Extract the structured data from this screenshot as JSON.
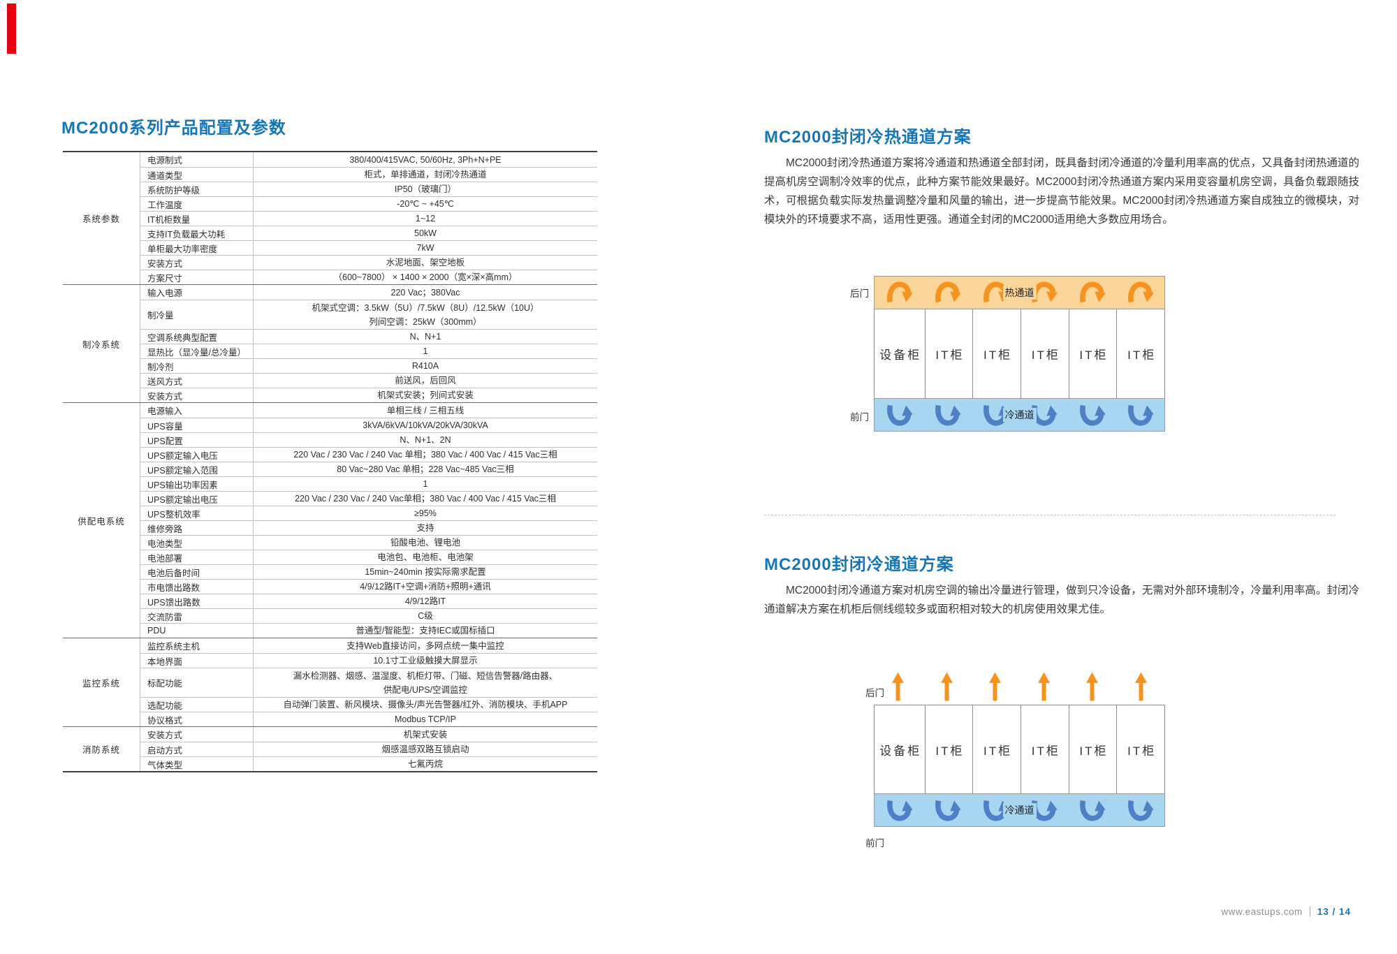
{
  "colors": {
    "accent_blue": "#1677b8",
    "arrow_orange": "#f6921e",
    "hot_band": "#fbd69a",
    "cold_band": "#a8d6f0",
    "arrow_blue": "#4d80c4",
    "red_tab": "#e60012"
  },
  "left": {
    "title": "MC2000系列产品配置及参数",
    "table": {
      "groups": [
        {
          "name": "系统参数",
          "rows": [
            {
              "param": "电源制式",
              "value": "380/400/415VAC, 50/60Hz, 3Ph+N+PE"
            },
            {
              "param": "通道类型",
              "value": "柜式，单排通道，封闭冷热通道"
            },
            {
              "param": "系统防护等级",
              "value": "IP50（玻璃门）"
            },
            {
              "param": "工作温度",
              "value": "-20℃ ~ +45℃"
            },
            {
              "param": "IT机柜数量",
              "value": "1~12"
            },
            {
              "param": "支持IT负载最大功耗",
              "value": "50kW"
            },
            {
              "param": "单柜最大功率密度",
              "value": "7kW"
            },
            {
              "param": "安装方式",
              "value": "水泥地面、架空地板"
            },
            {
              "param": "方案尺寸",
              "value": "（600~7800） × 1400 × 2000（宽×深×高mm）"
            }
          ]
        },
        {
          "name": "制冷系统",
          "rows": [
            {
              "param": "输入电源",
              "value": "220 Vac；380Vac"
            },
            {
              "param": "制冷量",
              "value": "机架式空调：3.5kW（5U）/7.5kW（8U）/12.5kW（10U）\n列间空调：25kW（300mm）"
            },
            {
              "param": "空调系统典型配置",
              "value": "N、N+1"
            },
            {
              "param": "显热比（显冷量/总冷量）",
              "value": "1"
            },
            {
              "param": "制冷剂",
              "value": "R410A"
            },
            {
              "param": "送风方式",
              "value": "前送风，后回风"
            },
            {
              "param": "安装方式",
              "value": "机架式安装；列间式安装"
            }
          ]
        },
        {
          "name": "供配电系统",
          "rows": [
            {
              "param": "电源输入",
              "value": "单相三线 / 三相五线"
            },
            {
              "param": "UPS容量",
              "value": "3kVA/6kVA/10kVA/20kVA/30kVA"
            },
            {
              "param": "UPS配置",
              "value": "N、N+1、2N"
            },
            {
              "param": "UPS额定输入电压",
              "value": "220 Vac / 230 Vac / 240 Vac 单相；380 Vac / 400 Vac / 415 Vac三相"
            },
            {
              "param": "UPS额定输入范围",
              "value": "80 Vac~280 Vac 单相；228 Vac~485 Vac三相"
            },
            {
              "param": "UPS输出功率因素",
              "value": "1"
            },
            {
              "param": "UPS额定输出电压",
              "value": "220 Vac / 230 Vac / 240 Vac单相；380 Vac / 400 Vac / 415 Vac三相"
            },
            {
              "param": "UPS整机效率",
              "value": "≥95%"
            },
            {
              "param": "维修旁路",
              "value": "支持"
            },
            {
              "param": "电池类型",
              "value": "铅酸电池、锂电池"
            },
            {
              "param": "电池部署",
              "value": "电池包、电池柜、电池架"
            },
            {
              "param": "电池后备时间",
              "value": "15min~240min 按实际需求配置"
            },
            {
              "param": "市电馈出路数",
              "value": "4/9/12路IT+空调+消防+照明+通讯"
            },
            {
              "param": "UPS馈出路数",
              "value": "4/9/12路IT"
            },
            {
              "param": "交流防雷",
              "value": "C级"
            },
            {
              "param": "PDU",
              "value": "普通型/智能型：支持IEC或国标插口"
            }
          ]
        },
        {
          "name": "监控系统",
          "rows": [
            {
              "param": "监控系统主机",
              "value": "支持Web直接访问，多网点统一集中监控"
            },
            {
              "param": "本地界面",
              "value": "10.1寸工业级触摸大屏显示"
            },
            {
              "param": "标配功能",
              "value": "漏水检测器、烟感、温湿度、机柜灯带、门磁、短信告警器/路由器、\n供配电/UPS/空调监控"
            },
            {
              "param": "选配功能",
              "value": "自动弹门装置、新风模块、摄像头/声光告警器/红外、消防模块、手机APP"
            },
            {
              "param": "协议格式",
              "value": "Modbus TCP/IP"
            }
          ]
        },
        {
          "name": "消防系统",
          "rows": [
            {
              "param": "安装方式",
              "value": "机架式安装"
            },
            {
              "param": "启动方式",
              "value": "烟感温感双路互锁启动"
            },
            {
              "param": "气体类型",
              "value": "七氟丙烷"
            }
          ]
        }
      ]
    }
  },
  "right": {
    "section1": {
      "title": "MC2000封闭冷热通道方案",
      "paragraph": "MC2000封闭冷热通道方案将冷通道和热通道全部封闭，既具备封闭冷通道的冷量利用率高的优点，又具备封闭热通道的提高机房空调制冷效率的优点，此种方案节能效果最好。MC2000封闭冷热通道方案内采用变容量机房空调，具备负载跟随技术，可根据负载实际发热量调整冷量和风量的输出，进一步提高节能效果。MC2000封闭冷热通道方案自成独立的微模块，对模块外的环境要求不高，适用性更强。通道全封闭的MC2000适用绝大多数应用场合。"
    },
    "diagram1": {
      "rear_door_label": "后门",
      "front_door_label": "前门",
      "hot_aisle_label": "热通道",
      "cold_aisle_label": "冷通道",
      "cabinets": [
        "设备柜",
        "IT柜",
        "IT柜",
        "IT柜",
        "IT柜",
        "IT柜"
      ],
      "hot_arrows": 6,
      "cold_arrows": 6
    },
    "section2": {
      "title": "MC2000封闭冷通道方案",
      "paragraph": "MC2000封闭冷通道方案对机房空调的输出冷量进行管理，做到只冷设备，无需对外部环境制冷，冷量利用率高。封闭冷通道解决方案在机柜后侧线缆较多或面积相对较大的机房使用效果尤佳。"
    },
    "diagram2": {
      "rear_door_label": "后门",
      "front_door_label": "前门",
      "cold_aisle_label": "冷通道",
      "cabinets": [
        "设备柜",
        "IT柜",
        "IT柜",
        "IT柜",
        "IT柜",
        "IT柜"
      ],
      "exhaust_arrows": 6,
      "cold_arrows": 6
    },
    "footer": {
      "website": "www.eastups.com",
      "page": "13 / 14"
    }
  }
}
